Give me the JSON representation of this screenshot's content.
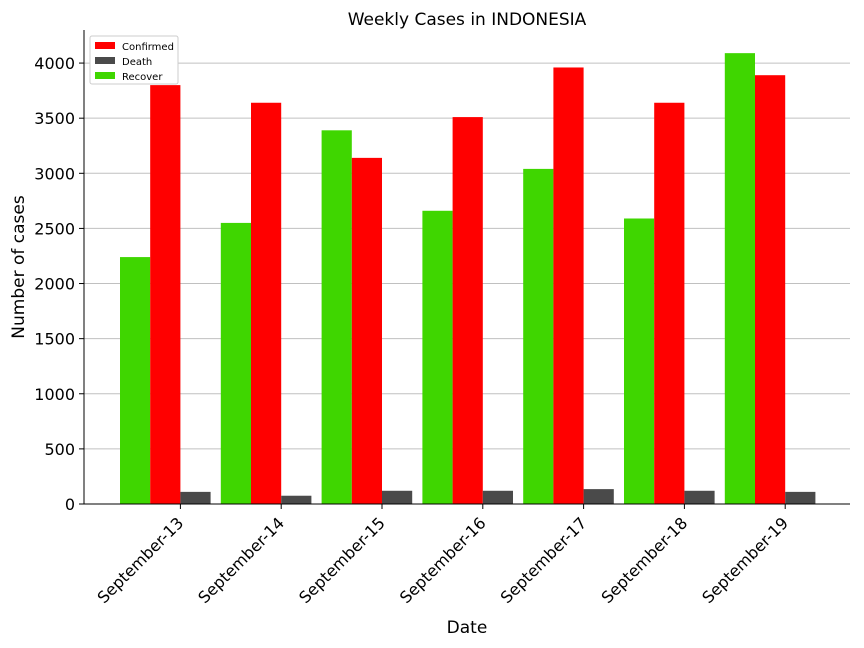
{
  "chart_data": {
    "type": "bar",
    "title": "Weekly Cases in INDONESIA",
    "xlabel": "Date",
    "ylabel": "Number of cases",
    "categories": [
      "September-13",
      "September-14",
      "September-15",
      "September-16",
      "September-17",
      "September-18",
      "September-19"
    ],
    "series": [
      {
        "name": "Recover",
        "color": "#3fd600",
        "values": [
          2240,
          2550,
          3390,
          2660,
          3040,
          2590,
          4090
        ]
      },
      {
        "name": "Confirmed",
        "color": "#ff0000",
        "values": [
          3800,
          3640,
          3140,
          3510,
          3960,
          3640,
          3890
        ]
      },
      {
        "name": "Death",
        "color": "#4a4a4a",
        "values": [
          110,
          75,
          120,
          120,
          135,
          120,
          110
        ]
      }
    ],
    "legend_order": [
      "Confirmed",
      "Death",
      "Recover"
    ],
    "legend_position": "top-left",
    "ylim": [
      0,
      4300
    ],
    "yticks": [
      0,
      500,
      1000,
      1500,
      2000,
      2500,
      3000,
      3500,
      4000
    ],
    "grid": "horizontal",
    "xtick_rotation": 45
  }
}
